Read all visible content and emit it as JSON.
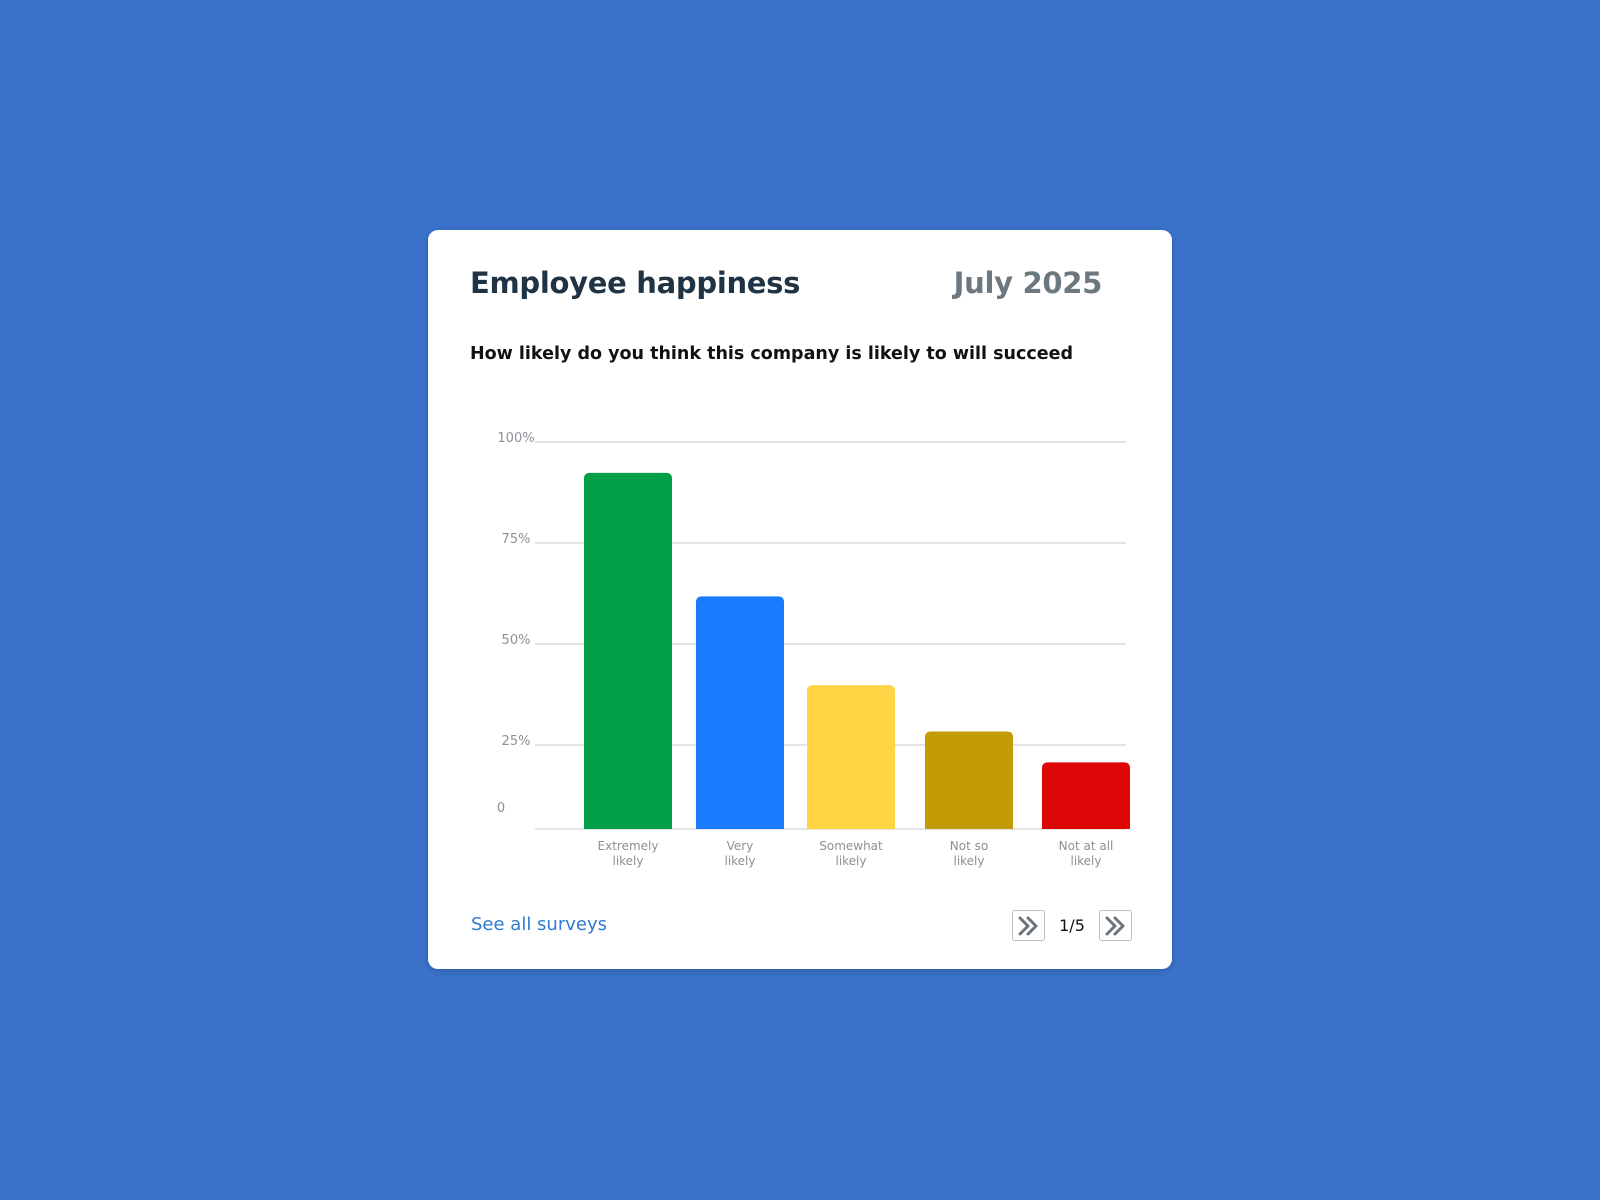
{
  "card": {
    "title": "Employee happiness",
    "date": "July 2025",
    "question": "How likely do you think this company is likely to will succeed"
  },
  "footer": {
    "link_label": "See all surveys",
    "page_indicator": "1/5",
    "prev_icon": "double-chevron-icon",
    "next_icon": "double-chevron-right-icon"
  },
  "colors": {
    "background": "#3a72c9",
    "link": "#2f7ad6"
  },
  "chart_data": {
    "type": "bar",
    "categories": [
      [
        "Extremely",
        "likely"
      ],
      [
        "Very",
        "likely"
      ],
      [
        "Somewhat",
        "likely"
      ],
      [
        "Not so",
        "likely"
      ],
      [
        "Not at all",
        "likely"
      ]
    ],
    "values": [
      92,
      60,
      37,
      25,
      17
    ],
    "colors": [
      "#009e45",
      "#1a7bff",
      "#ffd546",
      "#c49a05",
      "#dc0606"
    ],
    "y_ticks": [
      "100%",
      "75%",
      "50%",
      "25%",
      "0"
    ],
    "ylim": [
      0,
      100
    ],
    "grid": true
  }
}
